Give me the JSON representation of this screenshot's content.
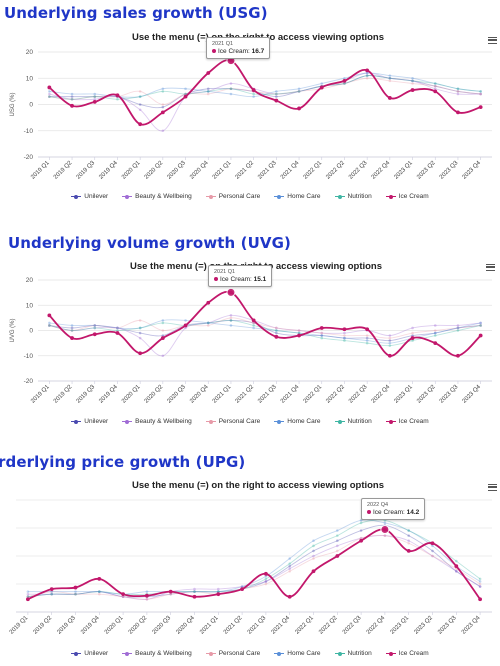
{
  "colors": {
    "title": "#1f36c7",
    "series": [
      "#4a4ab0",
      "#a06cd5",
      "#e79aa8",
      "#5a8fd8",
      "#3fb5a3",
      "#c2176b"
    ]
  },
  "subtitle": "Use the menu (=) on the right to access viewing options",
  "menu_icon": "hamburger-menu-icon",
  "chart_data": [
    {
      "type": "line",
      "title": "Underlying sales growth (USG)",
      "ylabel": "USG (%)",
      "ylim": [
        -20,
        20
      ],
      "yticks": [
        -20,
        -10,
        0,
        10,
        20
      ],
      "categories": [
        "2019 Q1",
        "2019 Q2",
        "2019 Q3",
        "2019 Q4",
        "2020 Q1",
        "2020 Q2",
        "2020 Q3",
        "2020 Q4",
        "2021 Q1",
        "2021 Q2",
        "2021 Q3",
        "2021 Q4",
        "2022 Q1",
        "2022 Q2",
        "2022 Q3",
        "2022 Q4",
        "2023 Q1",
        "2023 Q2",
        "2023 Q3",
        "2023 Q4"
      ],
      "series": [
        {
          "name": "Unilever",
          "values": [
            3,
            3,
            3,
            3,
            0,
            -1,
            4,
            6,
            6,
            5,
            3,
            5,
            7,
            8,
            11,
            10,
            9,
            7,
            5,
            4
          ]
        },
        {
          "name": "Beauty & Wellbeing",
          "values": [
            4,
            2,
            2,
            3,
            -2,
            -10,
            3,
            5,
            8,
            6,
            4,
            5,
            7,
            9,
            12,
            10,
            9,
            6,
            4,
            4
          ]
        },
        {
          "name": "Personal Care",
          "values": [
            3,
            2,
            3,
            3,
            5,
            0,
            4,
            4,
            6,
            5,
            4,
            5,
            6,
            8,
            10,
            9,
            8,
            7,
            5,
            4
          ]
        },
        {
          "name": "Home Care",
          "values": [
            5,
            4,
            4,
            3,
            3,
            6,
            6,
            5,
            4,
            3,
            5,
            6,
            8,
            10,
            12,
            11,
            10,
            8,
            6,
            5
          ]
        },
        {
          "name": "Nutrition",
          "values": [
            3,
            2,
            3,
            2,
            3,
            5,
            4,
            5,
            6,
            4,
            4,
            5,
            7,
            8,
            11,
            10,
            9,
            8,
            6,
            5
          ]
        },
        {
          "name": "Ice Cream",
          "values": [
            6.5,
            -0.5,
            1,
            3.5,
            -7.5,
            -3,
            3,
            12,
            16.7,
            5.5,
            1.5,
            -1.5,
            6.5,
            9,
            13,
            2.5,
            5.5,
            5,
            -3,
            -1
          ]
        }
      ],
      "tooltip": {
        "period": "2021 Q1",
        "series": "Ice Cream",
        "value": "16.7"
      },
      "legend": "bottom"
    },
    {
      "type": "line",
      "title": "Underlying volume growth (UVG)",
      "ylabel": "UVG (%)",
      "ylim": [
        -20,
        20
      ],
      "yticks": [
        -20,
        -10,
        0,
        10,
        20
      ],
      "categories": [
        "2019 Q1",
        "2019 Q2",
        "2019 Q3",
        "2019 Q4",
        "2020 Q1",
        "2020 Q2",
        "2020 Q3",
        "2020 Q4",
        "2021 Q1",
        "2021 Q2",
        "2021 Q3",
        "2021 Q4",
        "2022 Q1",
        "2022 Q2",
        "2022 Q3",
        "2022 Q4",
        "2023 Q1",
        "2023 Q2",
        "2023 Q3",
        "2023 Q4"
      ],
      "series": [
        {
          "name": "Unilever",
          "values": [
            2,
            1,
            2,
            1,
            -1,
            -2,
            2,
            3,
            4,
            3,
            -1,
            -2,
            -2,
            -3,
            -3,
            -4,
            -2,
            -1,
            1,
            2
          ]
        },
        {
          "name": "Beauty & Wellbeing",
          "values": [
            2,
            0,
            1,
            1,
            -3,
            -10,
            1,
            3,
            6,
            4,
            1,
            0,
            -1,
            -1,
            0,
            -2,
            1,
            2,
            2,
            3
          ]
        },
        {
          "name": "Personal Care",
          "values": [
            2,
            0,
            2,
            1,
            4,
            0,
            2,
            2,
            5,
            3,
            1,
            0,
            -1,
            -2,
            -2,
            -3,
            -1,
            0,
            1,
            2
          ]
        },
        {
          "name": "Home Care",
          "values": [
            3,
            2,
            2,
            1,
            1,
            4,
            4,
            3,
            2,
            1,
            0,
            -1,
            -2,
            -3,
            -4,
            -5,
            -3,
            -1,
            1,
            3
          ]
        },
        {
          "name": "Nutrition",
          "values": [
            2,
            0,
            1,
            0,
            1,
            3,
            2,
            3,
            4,
            2,
            0,
            -1,
            -3,
            -4,
            -5,
            -6,
            -4,
            -2,
            0,
            2
          ]
        },
        {
          "name": "Ice Cream",
          "values": [
            6,
            -3,
            -1.5,
            -1,
            -9,
            -3,
            2,
            11,
            15.1,
            4,
            -2.5,
            -2,
            1,
            0.5,
            0.5,
            -10,
            -3,
            -5,
            -10,
            -2
          ]
        }
      ],
      "tooltip": {
        "period": "2021 Q1",
        "series": "Ice Cream",
        "value": "15.1"
      },
      "legend": "bottom"
    },
    {
      "type": "line",
      "title": "Underlying price growth (UPG)",
      "title_display": "rderlying price growth (UPG)",
      "ylim": [
        -2,
        20
      ],
      "yticks": [],
      "categories": [
        "2019 Q1",
        "2019 Q2",
        "2019 Q3",
        "2019 Q4",
        "2020 Q1",
        "2020 Q2",
        "2020 Q3",
        "2020 Q4",
        "2021 Q1",
        "2021 Q2",
        "2021 Q3",
        "2021 Q4",
        "2022 Q1",
        "2022 Q2",
        "2022 Q3",
        "2022 Q4",
        "2023 Q1",
        "2023 Q2",
        "2023 Q3",
        "2023 Q4"
      ],
      "series": [
        {
          "name": "Unilever",
          "values": [
            1,
            1.5,
            1.5,
            2,
            1,
            1,
            1.5,
            2,
            2,
            2.5,
            4,
            7,
            10,
            12,
            14,
            15,
            13,
            10,
            6,
            3
          ]
        },
        {
          "name": "Beauty & Wellbeing",
          "values": [
            1.5,
            1.5,
            1.5,
            2,
            1,
            0.5,
            2,
            2.5,
            2.5,
            3,
            4,
            6.5,
            9,
            11,
            12.5,
            13,
            12,
            9,
            6,
            3
          ]
        },
        {
          "name": "Personal Care",
          "values": [
            1,
            2,
            1.5,
            1.5,
            1,
            0.5,
            1.5,
            2,
            1.5,
            2.5,
            3.5,
            6,
            8.5,
            10,
            12.5,
            13,
            11.5,
            9,
            6.5,
            3.5
          ]
        },
        {
          "name": "Home Care",
          "values": [
            2,
            2,
            2,
            2,
            1.5,
            2,
            2,
            2,
            2,
            3,
            5,
            8.5,
            12,
            14,
            16,
            15.5,
            14,
            11,
            7,
            4
          ]
        },
        {
          "name": "Nutrition",
          "values": [
            1,
            1.5,
            1.5,
            2,
            1.5,
            1.5,
            2,
            2,
            2,
            2.5,
            4.5,
            7.5,
            11,
            13,
            15.5,
            16,
            14,
            11.5,
            8,
            4.5
          ]
        },
        {
          "name": "Ice Cream",
          "values": [
            0.5,
            2.5,
            2.8,
            4.5,
            1.5,
            1.2,
            2,
            1,
            1.5,
            2.5,
            5.5,
            1,
            6,
            9,
            12,
            14.2,
            10,
            11.5,
            7,
            0.5
          ]
        }
      ],
      "tooltip": {
        "period": "2022 Q4",
        "series": "Ice Cream",
        "value": "14.2"
      },
      "legend": "bottom"
    }
  ],
  "legend_items": [
    "Unilever",
    "Beauty & Wellbeing",
    "Personal Care",
    "Home Care",
    "Nutrition",
    "Ice Cream"
  ]
}
